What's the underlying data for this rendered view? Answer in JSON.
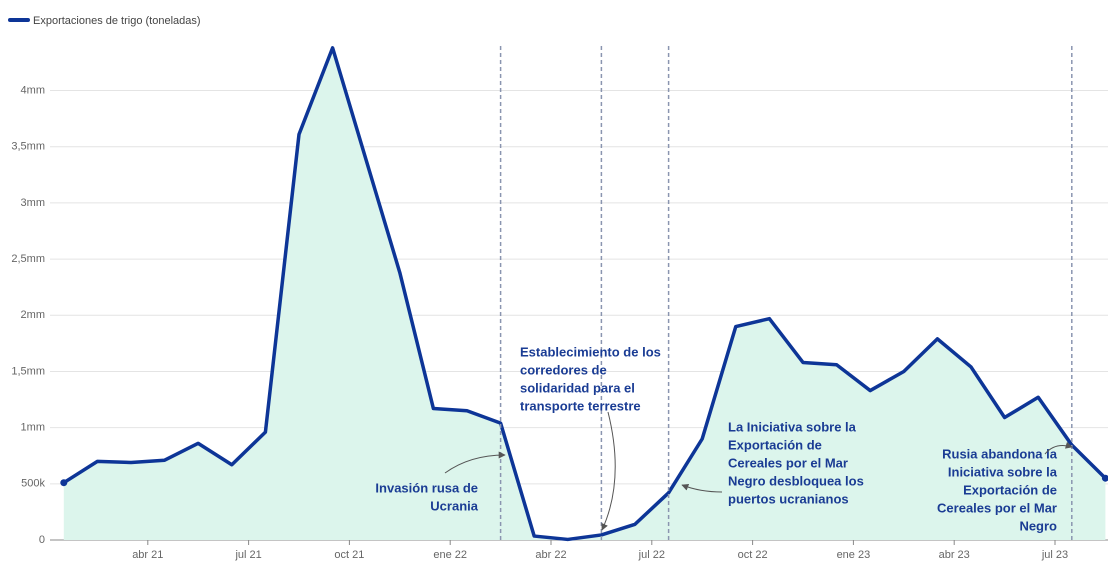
{
  "chart_data": {
    "type": "area",
    "series": [
      {
        "name": "Exportaciones de trigo (toneladas)",
        "color": "#0d3597",
        "fill": "#dcf5ec",
        "values": [
          510000,
          700000,
          690000,
          710000,
          860000,
          670000,
          960000,
          3610000,
          4380000,
          3380000,
          2380000,
          1170000,
          1150000,
          1040000,
          35000,
          5000,
          45000,
          140000,
          420000,
          900000,
          1900000,
          1970000,
          1580000,
          1560000,
          1330000,
          1500000,
          1790000,
          1540000,
          1090000,
          1270000,
          845000,
          550000
        ]
      }
    ],
    "x": [
      "2021-01",
      "2021-02",
      "2021-03",
      "2021-04",
      "2021-05",
      "2021-06",
      "2021-07",
      "2021-08",
      "2021-09",
      "2021-10",
      "2021-11",
      "2021-12",
      "2022-01",
      "2022-02",
      "2022-03",
      "2022-04",
      "2022-05",
      "2022-06",
      "2022-07",
      "2022-08",
      "2022-09",
      "2022-10",
      "2022-11",
      "2022-12",
      "2023-01",
      "2023-02",
      "2023-03",
      "2023-04",
      "2023-05",
      "2023-06",
      "2023-07",
      "2023-08"
    ],
    "ylim": [
      0,
      4450000
    ],
    "yticks": [
      0,
      {
        "value": 500000,
        "label": "500k"
      },
      {
        "value": 1000000,
        "label": "1mm"
      },
      {
        "value": 1500000,
        "label": "1,5mm"
      },
      {
        "value": 2000000,
        "label": "2mm"
      },
      {
        "value": 2500000,
        "label": "2,5mm"
      },
      {
        "value": 3000000,
        "label": "3mm"
      },
      {
        "value": 3500000,
        "label": "3,5mm"
      },
      {
        "value": 4000000,
        "label": "4mm"
      }
    ],
    "xticks": [
      {
        "value": "2021-04",
        "label": "abr 21"
      },
      {
        "value": "2021-07",
        "label": "jul 21"
      },
      {
        "value": "2021-10",
        "label": "oct 21"
      },
      {
        "value": "2022-01",
        "label": "ene 22"
      },
      {
        "value": "2022-04",
        "label": "abr 22"
      },
      {
        "value": "2022-07",
        "label": "jul 22"
      },
      {
        "value": "2022-10",
        "label": "oct 22"
      },
      {
        "value": "2023-01",
        "label": "ene 23"
      },
      {
        "value": "2023-04",
        "label": "abr 23"
      },
      {
        "value": "2023-07",
        "label": "jul 23"
      }
    ],
    "grid": true,
    "annotations": [
      {
        "x": "2022-02",
        "lines": [
          "Invasión rusa de",
          "Ucrania"
        ]
      },
      {
        "x": "2022-05",
        "lines": [
          "Establecimiento de los",
          "corredores de",
          "solidaridad para el",
          "transporte terrestre"
        ]
      },
      {
        "x": "2022-07",
        "lines": [
          "La Iniciativa sobre la",
          "Exportación de",
          "Cereales por el Mar",
          "Negro desbloquea los",
          "puertos ucranianos"
        ]
      },
      {
        "x": "2023-07",
        "lines": [
          "Rusia abandona la",
          "Iniciativa sobre la",
          "Exportación de",
          "Cereales por el Mar",
          "Negro"
        ]
      }
    ]
  }
}
